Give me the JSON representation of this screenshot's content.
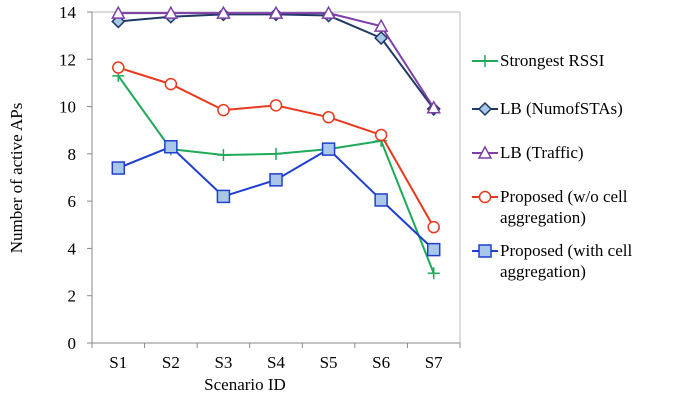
{
  "chart_data": {
    "type": "line",
    "x_label": "Scenario ID",
    "y_label": "Number of active APs",
    "categories": [
      "S1",
      "S2",
      "S3",
      "S4",
      "S5",
      "S6",
      "S7"
    ],
    "ylim": [
      0,
      14
    ],
    "yticks": [
      0,
      2,
      4,
      6,
      8,
      10,
      12,
      14
    ],
    "series": [
      {
        "name": "Strongest RSSI",
        "color": "#1faa5a",
        "marker": "plus",
        "marker_fill": "#1faa5a",
        "values": [
          11.3,
          8.2,
          7.95,
          8.0,
          8.2,
          8.55,
          2.95
        ]
      },
      {
        "name": "LB (NumofSTAs)",
        "color": "#1f3864",
        "marker": "diamond",
        "marker_fill": "#a9c8e8",
        "values": [
          13.6,
          13.8,
          13.9,
          13.9,
          13.85,
          12.9,
          9.9
        ]
      },
      {
        "name": "LB (Traffic)",
        "color": "#7f3fa8",
        "marker": "triangle",
        "marker_fill": "#ffffff",
        "values": [
          13.95,
          13.95,
          13.95,
          13.95,
          13.95,
          13.4,
          9.95
        ]
      },
      {
        "name": "Proposed (w/o cell aggregation)",
        "color": "#e8391e",
        "marker": "circle",
        "marker_fill": "#ffffff",
        "values": [
          11.65,
          10.95,
          9.85,
          10.05,
          9.55,
          8.8,
          4.9
        ]
      },
      {
        "name": "Proposed (with cell aggregation)",
        "color": "#1f3fd0",
        "marker": "square",
        "marker_fill": "#a9c8e8",
        "values": [
          7.4,
          8.3,
          6.2,
          6.9,
          8.2,
          6.05,
          3.95
        ]
      }
    ]
  }
}
